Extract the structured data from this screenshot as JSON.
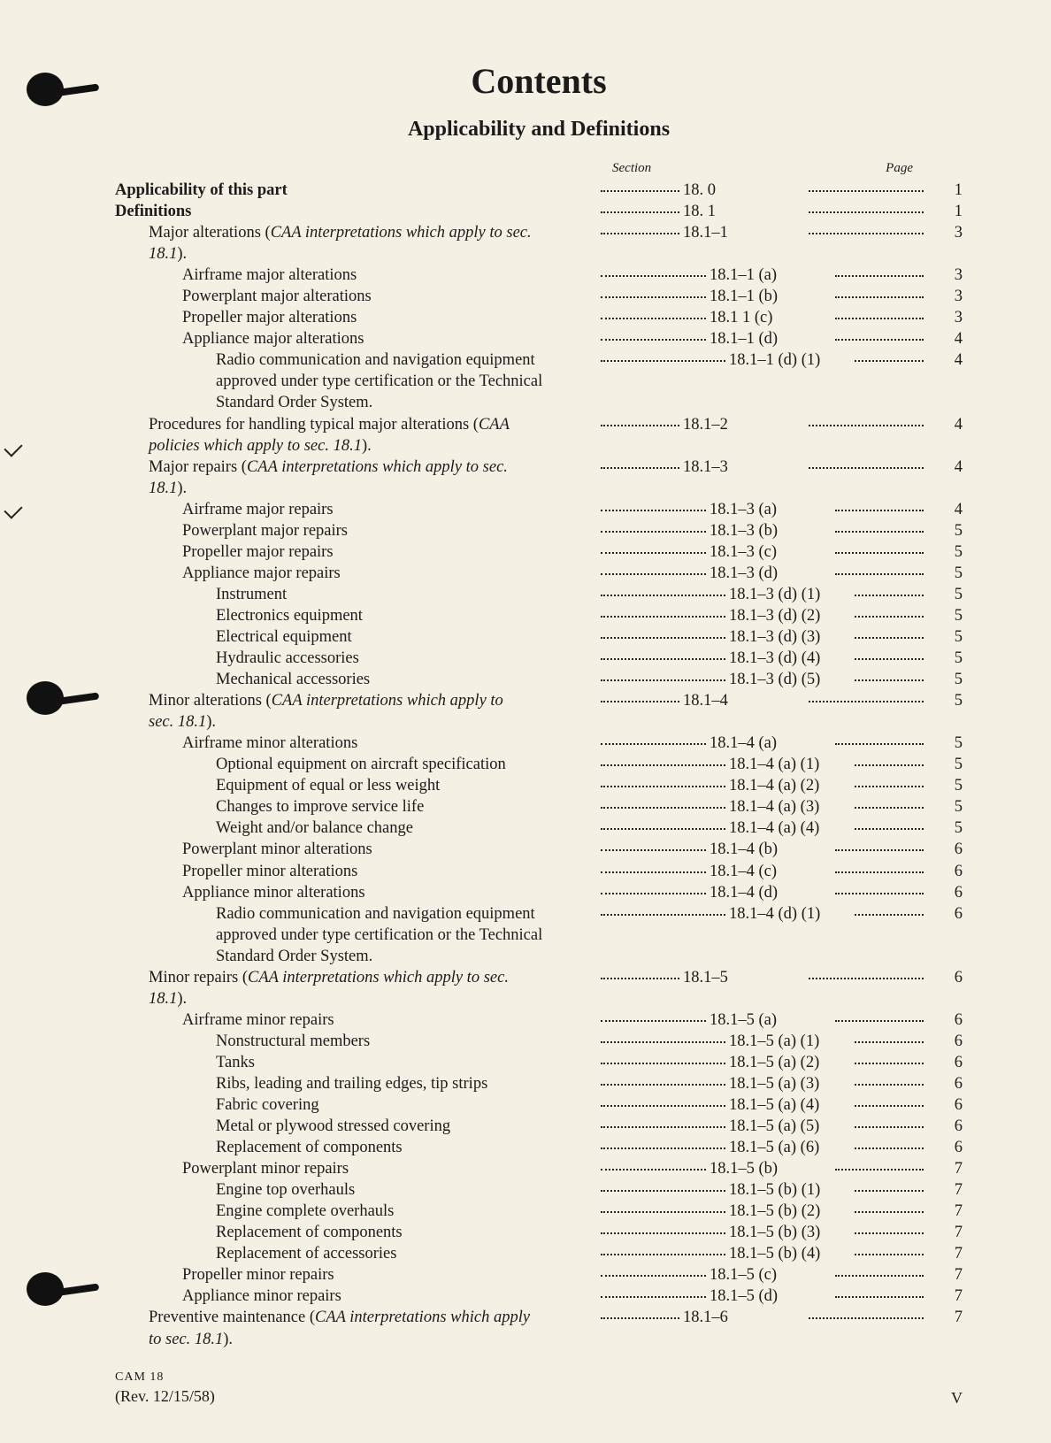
{
  "page": {
    "title": "Contents",
    "subtitle": "Applicability and Definitions",
    "column_headers": {
      "section": "Section",
      "page": "Page"
    },
    "footer": {
      "cam": "CAM 18",
      "rev": "(Rev. 12/15/58)",
      "pagenum": "V"
    },
    "background_color": "#f5f0e4",
    "text_color": "#1b1b1b",
    "title_fontsize": 40,
    "subtitle_fontsize": 24,
    "body_fontsize": 18.5,
    "leader_style": "dotted"
  },
  "entries": [
    {
      "depth": 0,
      "bold": true,
      "label_html": "Applicability of this part",
      "section": "18. 0",
      "page": "1"
    },
    {
      "depth": 0,
      "bold": true,
      "label_html": "Definitions",
      "section": "18. 1",
      "page": "1"
    },
    {
      "depth": 1,
      "label_html": "Major alterations (<em>CAA interpretations which apply to sec. 18.1</em>).",
      "multi": true,
      "first": "Major alterations (<em>CAA interpretations which apply to sec.</em>",
      "cont": "<em>18.1</em>).",
      "section": "18.1–1",
      "page": "3"
    },
    {
      "depth": 2,
      "label_html": "Airframe major alterations",
      "section": "18.1–1 (a)",
      "page": "3"
    },
    {
      "depth": 2,
      "label_html": "Powerplant major alterations",
      "section": "18.1–1 (b)",
      "page": "3"
    },
    {
      "depth": 2,
      "label_html": "Propeller major alterations",
      "section": "18.1 1 (c)",
      "page": "3"
    },
    {
      "depth": 2,
      "label_html": "Appliance major alterations",
      "section": "18.1–1 (d)",
      "page": "4"
    },
    {
      "depth": 3,
      "multi": true,
      "first": "Radio communication and navigation equipment",
      "cont": "approved under type certification or the Technical Standard Order System.",
      "section": "18.1–1 (d) (1)",
      "page": "4"
    },
    {
      "depth": 1,
      "multi": true,
      "first": "Procedures for handling typical major alterations (<em>CAA</em>",
      "cont": "<em>policies which apply to sec. 18.1</em>).",
      "section": "18.1–2",
      "page": "4"
    },
    {
      "depth": 1,
      "multi": true,
      "first": "Major repairs (<em>CAA interpretations which apply to sec.</em>",
      "cont": "<em>18.1</em>).",
      "section": "18.1–3",
      "page": "4"
    },
    {
      "depth": 2,
      "label_html": "Airframe major repairs",
      "section": "18.1–3 (a)",
      "page": "4"
    },
    {
      "depth": 2,
      "label_html": "Powerplant major repairs",
      "section": "18.1–3 (b)",
      "page": "5"
    },
    {
      "depth": 2,
      "label_html": "Propeller major repairs",
      "section": "18.1–3 (c)",
      "page": "5"
    },
    {
      "depth": 2,
      "label_html": "Appliance major repairs",
      "section": "18.1–3 (d)",
      "page": "5"
    },
    {
      "depth": 3,
      "label_html": "Instrument",
      "section": "18.1–3 (d) (1)",
      "page": "5"
    },
    {
      "depth": 3,
      "label_html": "Electronics equipment",
      "section": "18.1–3 (d) (2)",
      "page": "5"
    },
    {
      "depth": 3,
      "label_html": "Electrical equipment",
      "section": "18.1–3 (d) (3)",
      "page": "5"
    },
    {
      "depth": 3,
      "label_html": "Hydraulic accessories",
      "section": "18.1–3 (d) (4)",
      "page": "5"
    },
    {
      "depth": 3,
      "label_html": "Mechanical accessories",
      "section": "18.1–3 (d) (5)",
      "page": "5"
    },
    {
      "depth": 1,
      "multi": true,
      "first": "Minor alterations (<em>CAA interpretations which apply to</em>",
      "cont": "<em>sec. 18.1</em>).",
      "section": "18.1–4",
      "page": "5"
    },
    {
      "depth": 2,
      "label_html": "Airframe minor alterations",
      "section": "18.1–4 (a)",
      "page": "5"
    },
    {
      "depth": 3,
      "label_html": "Optional equipment on aircraft specification",
      "section": "18.1–4 (a) (1)",
      "page": "5"
    },
    {
      "depth": 3,
      "label_html": "Equipment of equal or less weight",
      "section": "18.1–4 (a) (2)",
      "page": "5"
    },
    {
      "depth": 3,
      "label_html": "Changes to improve service life",
      "section": "18.1–4 (a) (3)",
      "page": "5"
    },
    {
      "depth": 3,
      "label_html": "Weight and/or balance change",
      "section": "18.1–4 (a) (4)",
      "page": "5"
    },
    {
      "depth": 2,
      "label_html": "Powerplant minor alterations",
      "section": "18.1–4 (b)",
      "page": "6"
    },
    {
      "depth": 2,
      "label_html": "Propeller minor alterations",
      "section": "18.1–4 (c)",
      "page": "6"
    },
    {
      "depth": 2,
      "label_html": "Appliance minor alterations",
      "section": "18.1–4 (d)",
      "page": "6"
    },
    {
      "depth": 3,
      "multi": true,
      "first": "Radio communication and navigation equipment",
      "cont": "approved under type certification or the Technical Standard Order System.",
      "section": "18.1–4 (d) (1)",
      "page": "6"
    },
    {
      "depth": 1,
      "multi": true,
      "first": "Minor repairs (<em>CAA interpretations which apply to sec.</em>",
      "cont": "<em>18.1</em>).",
      "section": "18.1–5",
      "page": "6"
    },
    {
      "depth": 2,
      "label_html": "Airframe minor repairs",
      "section": "18.1–5 (a)",
      "page": "6"
    },
    {
      "depth": 3,
      "label_html": "Nonstructural members",
      "section": "18.1–5 (a) (1)",
      "page": "6"
    },
    {
      "depth": 3,
      "label_html": "Tanks",
      "section": "18.1–5 (a) (2)",
      "page": "6"
    },
    {
      "depth": 3,
      "label_html": "Ribs, leading and trailing edges, tip strips",
      "section": "18.1–5 (a) (3)",
      "page": "6"
    },
    {
      "depth": 3,
      "label_html": "Fabric covering",
      "section": "18.1–5 (a) (4)",
      "page": "6"
    },
    {
      "depth": 3,
      "label_html": "Metal or plywood stressed covering",
      "section": "18.1–5 (a) (5)",
      "page": "6"
    },
    {
      "depth": 3,
      "label_html": "Replacement of components",
      "section": "18.1–5 (a) (6)",
      "page": "6"
    },
    {
      "depth": 2,
      "label_html": "Powerplant minor repairs",
      "section": "18.1–5 (b)",
      "page": "7"
    },
    {
      "depth": 3,
      "label_html": "Engine top overhauls",
      "section": "18.1–5 (b) (1)",
      "page": "7"
    },
    {
      "depth": 3,
      "label_html": "Engine complete overhauls",
      "section": "18.1–5 (b) (2)",
      "page": "7"
    },
    {
      "depth": 3,
      "label_html": "Replacement of components",
      "section": "18.1–5 (b) (3)",
      "page": "7"
    },
    {
      "depth": 3,
      "label_html": "Replacement of accessories",
      "section": "18.1–5 (b) (4)",
      "page": "7"
    },
    {
      "depth": 2,
      "label_html": "Propeller minor repairs",
      "section": "18.1–5 (c)",
      "page": "7"
    },
    {
      "depth": 2,
      "label_html": "Appliance minor repairs",
      "section": "18.1–5 (d)",
      "page": "7"
    },
    {
      "depth": 1,
      "multi": true,
      "first": "Preventive maintenance (<em>CAA interpretations which apply</em>",
      "cont": "<em>to sec. 18.1</em>).",
      "section": "18.1–6",
      "page": "7"
    }
  ]
}
